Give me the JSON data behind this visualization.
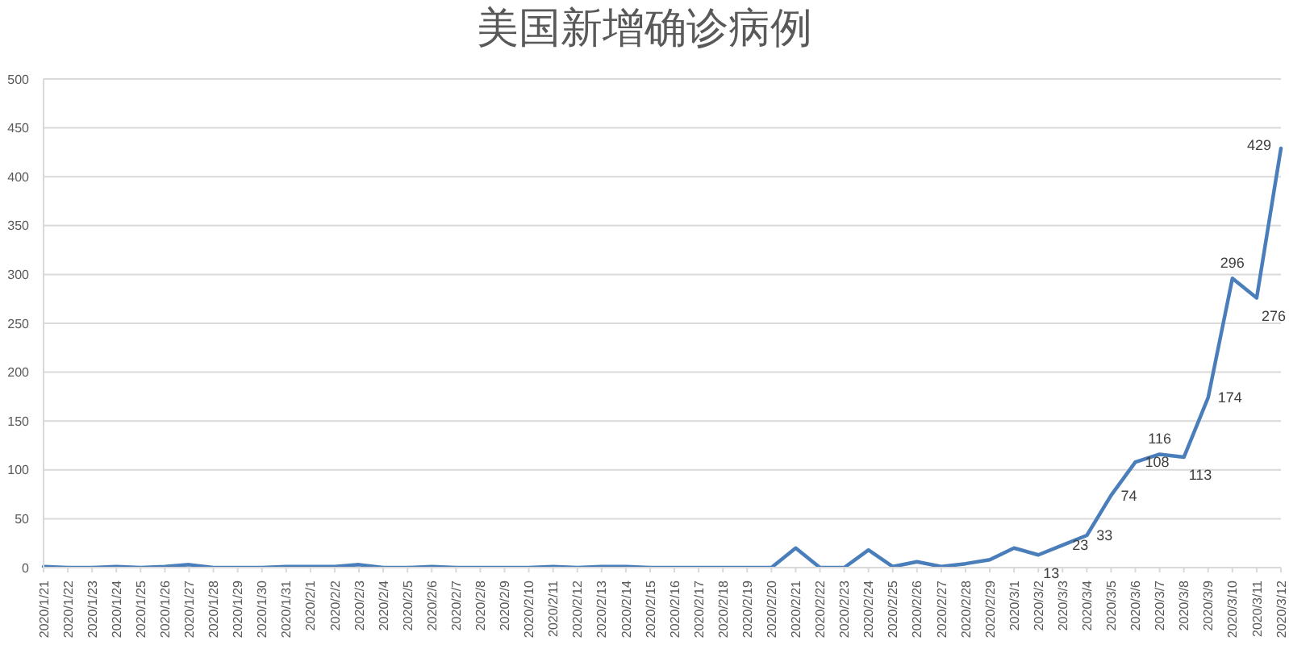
{
  "chart_data": {
    "type": "line",
    "title": "美国新增确诊病例",
    "categories": [
      "2020/1/21",
      "2020/1/22",
      "2020/1/23",
      "2020/1/24",
      "2020/1/25",
      "2020/1/26",
      "2020/1/27",
      "2020/1/28",
      "2020/1/29",
      "2020/1/30",
      "2020/1/31",
      "2020/2/1",
      "2020/2/2",
      "2020/2/3",
      "2020/2/4",
      "2020/2/5",
      "2020/2/6",
      "2020/2/7",
      "2020/2/8",
      "2020/2/9",
      "2020/2/10",
      "2020/2/11",
      "2020/2/12",
      "2020/2/13",
      "2020/2/14",
      "2020/2/15",
      "2020/2/16",
      "2020/2/17",
      "2020/2/18",
      "2020/2/19",
      "2020/2/20",
      "2020/2/21",
      "2020/2/22",
      "2020/2/23",
      "2020/2/24",
      "2020/2/25",
      "2020/2/26",
      "2020/2/27",
      "2020/2/28",
      "2020/2/29",
      "2020/3/1",
      "2020/3/2",
      "2020/3/3",
      "2020/3/4",
      "2020/3/5",
      "2020/3/6",
      "2020/3/7",
      "2020/3/8",
      "2020/3/9",
      "2020/3/10",
      "2020/3/11",
      "2020/3/12"
    ],
    "series": [
      {
        "color": "#4a7ebb",
        "values": [
          1,
          0,
          0,
          1,
          0,
          1,
          3,
          0,
          0,
          0,
          1,
          1,
          1,
          3,
          0,
          0,
          1,
          0,
          0,
          0,
          0,
          1,
          0,
          1,
          1,
          0,
          0,
          0,
          0,
          0,
          0,
          20,
          0,
          0,
          18,
          1,
          6,
          1,
          4,
          8,
          20,
          13,
          23,
          33,
          74,
          108,
          116,
          113,
          174,
          296,
          276,
          429
        ],
        "value_labels": [
          null,
          null,
          null,
          null,
          null,
          null,
          null,
          null,
          null,
          null,
          null,
          null,
          null,
          null,
          null,
          null,
          null,
          null,
          null,
          null,
          null,
          null,
          null,
          null,
          null,
          null,
          null,
          null,
          null,
          null,
          null,
          null,
          null,
          null,
          null,
          null,
          null,
          null,
          null,
          null,
          null,
          "13",
          "23",
          "33",
          "74",
          "108",
          "116",
          "113",
          "174",
          "296",
          "276",
          "429"
        ]
      }
    ],
    "ylim": [
      0,
      500
    ],
    "yticks": [
      0,
      50,
      100,
      150,
      200,
      250,
      300,
      350,
      400,
      450,
      500
    ],
    "grid": "y",
    "marker": "none",
    "line_style": "solid"
  }
}
